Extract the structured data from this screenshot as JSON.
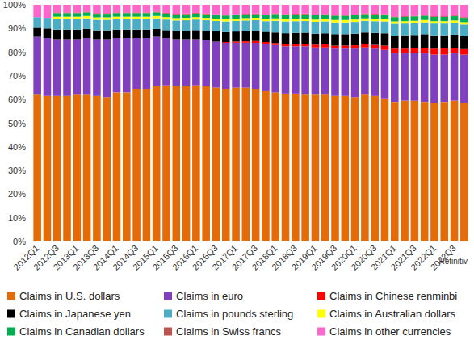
{
  "chart_data": {
    "type": "bar",
    "stacked": true,
    "grid": false,
    "legend": "bottom",
    "source": "Refinitiv",
    "categories": [
      "2012Q1",
      null,
      "2012Q3",
      null,
      "2013Q1",
      null,
      "2013Q3",
      null,
      "2014Q1",
      null,
      "2014Q3",
      null,
      "2015Q1",
      null,
      "2015Q3",
      null,
      "2016Q1",
      null,
      "2016Q3",
      null,
      "2017Q1",
      null,
      "2017Q3",
      null,
      "2018Q1",
      null,
      "2018Q3",
      null,
      "2019Q1",
      null,
      "2019Q3",
      null,
      "2020Q1",
      null,
      "2020Q3",
      null,
      "2021Q1",
      null,
      "2021Q3",
      null,
      "2022Q1",
      null,
      "2022Q3",
      null
    ],
    "ylim": [
      0,
      100
    ],
    "yticks": [
      {
        "value": 0,
        "label": "0%"
      },
      {
        "value": 10,
        "label": "10%"
      },
      {
        "value": 20,
        "label": "20%"
      },
      {
        "value": 30,
        "label": "30%"
      },
      {
        "value": 40,
        "label": "40%"
      },
      {
        "value": 50,
        "label": "50%"
      },
      {
        "value": 60,
        "label": "60%"
      },
      {
        "value": 70,
        "label": "70%"
      },
      {
        "value": 80,
        "label": "80%"
      },
      {
        "value": 90,
        "label": "90%"
      },
      {
        "value": 100,
        "label": "100%"
      }
    ],
    "series": [
      {
        "name": "Claims in U.S. dollars",
        "color": "#e36c09",
        "values": [
          62,
          61.5,
          61.5,
          61.5,
          62,
          62,
          61.5,
          61,
          63,
          63,
          64.5,
          64.5,
          65.5,
          66,
          65.5,
          65.5,
          66,
          65.5,
          65,
          64.5,
          65,
          65,
          64.5,
          63.5,
          63,
          62.5,
          62.5,
          62,
          62,
          62,
          61.5,
          61.5,
          61,
          62,
          61.5,
          60.5,
          59,
          59.5,
          59.5,
          59,
          58.5,
          59,
          59.5,
          58.5
        ]
      },
      {
        "name": "Claims in euro",
        "color": "#7f3fbf",
        "values": [
          24.5,
          24.5,
          24,
          24,
          23.5,
          24,
          24,
          24.5,
          23,
          23,
          21.5,
          21.5,
          21,
          20,
          20,
          20,
          19.5,
          19.5,
          19.5,
          19.5,
          19,
          19,
          19.5,
          20,
          20,
          20,
          20,
          20.5,
          20,
          20,
          20,
          20,
          20.5,
          20,
          20,
          20.5,
          20.5,
          20,
          20,
          20.5,
          20.5,
          20,
          20,
          20.5
        ]
      },
      {
        "name": "Claims in Chinese renminbi",
        "color": "#ff0000",
        "values": [
          0,
          0,
          0,
          0,
          0,
          0,
          0,
          0,
          0,
          0,
          0,
          0,
          0,
          0,
          0,
          0,
          0,
          0,
          0,
          0.3,
          0.5,
          0.6,
          0.7,
          0.8,
          0.9,
          1,
          1,
          1.1,
          1.2,
          1.3,
          1.3,
          1.3,
          1.4,
          1.5,
          1.6,
          1.8,
          2,
          2,
          2.2,
          2.3,
          2.5,
          2.6,
          2.4,
          2.3
        ]
      },
      {
        "name": "Claims in Japanese yen",
        "color": "#000000",
        "values": [
          3.8,
          4,
          4,
          4,
          4,
          3.8,
          3.7,
          3.7,
          3.5,
          3.5,
          3.5,
          3.5,
          3.3,
          3.3,
          3.4,
          3.5,
          3.8,
          4,
          4.2,
          4.2,
          4.2,
          4.3,
          4.3,
          4.3,
          4.4,
          4.5,
          4.6,
          4.6,
          4.6,
          4.7,
          4.8,
          4.8,
          4.9,
          4.8,
          5,
          5.2,
          5.5,
          5.6,
          5.6,
          5.8,
          5.6,
          5.5,
          5.5,
          5.4
        ]
      },
      {
        "name": "Claims in pounds sterling",
        "color": "#4bacc6",
        "values": [
          4.5,
          4.5,
          4.5,
          4.5,
          4.5,
          4.5,
          4.5,
          4.5,
          4.5,
          4.5,
          4.5,
          4.5,
          4.5,
          4.5,
          4.5,
          4.5,
          4.5,
          4.5,
          4.5,
          4.5,
          4.5,
          4.5,
          4.5,
          4.5,
          5,
          5,
          5,
          5,
          5,
          5,
          5,
          5,
          5,
          5,
          5,
          5,
          5,
          5,
          5,
          5,
          5,
          5,
          5,
          5
        ]
      },
      {
        "name": "Claims in Australian dollars",
        "color": "#ffff00",
        "values": [
          0,
          0,
          1,
          1,
          1,
          1,
          1,
          1,
          1,
          1,
          1,
          1,
          1,
          1,
          1,
          1,
          1,
          1,
          1,
          1,
          1,
          1,
          1,
          1,
          1,
          1,
          1,
          1,
          1,
          1,
          1,
          1,
          1,
          1,
          1,
          1,
          1,
          1,
          1,
          1,
          1,
          1,
          1,
          1
        ]
      },
      {
        "name": "Claims in Canadian dollars",
        "color": "#00b050",
        "values": [
          0,
          0,
          1.5,
          1.5,
          1.5,
          1.5,
          1.5,
          1.5,
          1.5,
          1.5,
          1.5,
          1.5,
          1.5,
          1.5,
          1.5,
          1.5,
          1.5,
          1.5,
          1.5,
          1.5,
          1.5,
          1.5,
          1.5,
          1.5,
          1.8,
          1.8,
          1.8,
          1.8,
          1.8,
          1.8,
          1.8,
          1.8,
          1.8,
          1.8,
          1.8,
          1.8,
          1.8,
          1.8,
          1.8,
          1.8,
          1.8,
          1.8,
          1.8,
          1.8
        ]
      },
      {
        "name": "Claims in Swiss francs",
        "color": "#c0504d",
        "values": [
          0,
          0,
          0.3,
          0.3,
          0.3,
          0.3,
          0.3,
          0.3,
          0.3,
          0.3,
          0.3,
          0.3,
          0.3,
          0.3,
          0.3,
          0.3,
          0.3,
          0.3,
          0.3,
          0.3,
          0.3,
          0.3,
          0.3,
          0.3,
          0.3,
          0.3,
          0.3,
          0.3,
          0.3,
          0.3,
          0.3,
          0.3,
          0.3,
          0.3,
          0.3,
          0.3,
          0.3,
          0.3,
          0.3,
          0.3,
          0.3,
          0.3,
          0.3,
          0.3
        ]
      },
      {
        "name": "Claims in other currencies",
        "color": "#ff66cc",
        "values": [
          5.2,
          5.5,
          3.2,
          3.2,
          3.2,
          2.9,
          3.5,
          3.5,
          3.2,
          3.2,
          3.2,
          3.2,
          2.9,
          3.4,
          3.8,
          3.7,
          3.4,
          3.7,
          4.0,
          4.2,
          4.0,
          3.8,
          3.7,
          4.1,
          3.6,
          3.9,
          3.8,
          3.7,
          4.1,
          3.9,
          4.3,
          4.3,
          4.1,
          3.6,
          3.8,
          3.9,
          4.9,
          4.8,
          4.6,
          4.3,
          4.8,
          4.8,
          4.5,
          5.2
        ]
      }
    ]
  }
}
